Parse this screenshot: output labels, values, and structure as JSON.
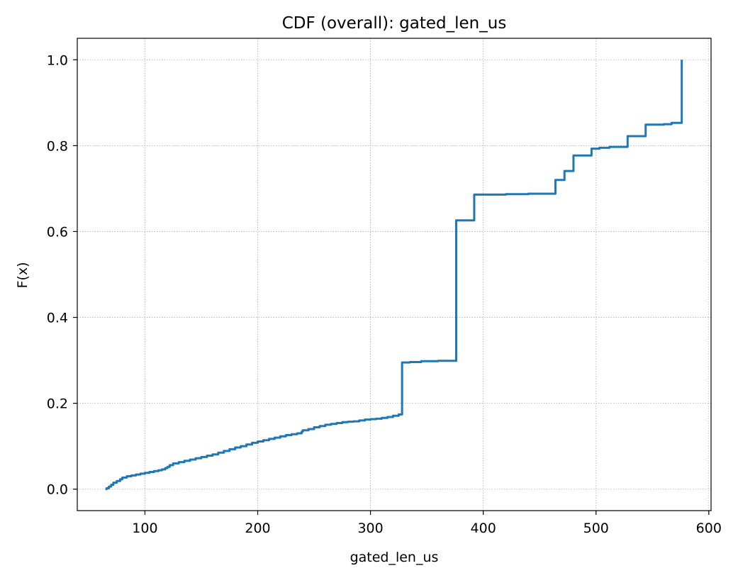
{
  "chart_data": {
    "type": "line",
    "title": "CDF (overall): gated_len_us",
    "xlabel": "gated_len_us",
    "ylabel": "F(x)",
    "xlim": [
      40,
      602
    ],
    "ylim": [
      -0.05,
      1.05
    ],
    "xticks": [
      100,
      200,
      300,
      400,
      500,
      600
    ],
    "yticks": [
      0.0,
      0.2,
      0.4,
      0.6,
      0.8,
      1.0
    ],
    "xtick_labels": [
      "100",
      "200",
      "300",
      "400",
      "500",
      "600"
    ],
    "ytick_labels": [
      "0.0",
      "0.2",
      "0.4",
      "0.6",
      "0.8",
      "1.0"
    ],
    "grid": true,
    "step": "post",
    "color": "#1f77b4",
    "series": [
      {
        "x": [
          65,
          66,
          68,
          70,
          72,
          75,
          78,
          80,
          84,
          88,
          92,
          96,
          100,
          104,
          108,
          112,
          115,
          118,
          120,
          122,
          125,
          130,
          135,
          140,
          145,
          150,
          155,
          160,
          165,
          170,
          175,
          180,
          185,
          190,
          195,
          200,
          205,
          210,
          215,
          220,
          225,
          230,
          235,
          239,
          240,
          245,
          250,
          255,
          260,
          265,
          270,
          275,
          280,
          285,
          290,
          295,
          300,
          305,
          310,
          315,
          320,
          325,
          328,
          335,
          345,
          360,
          376,
          392,
          420,
          440,
          464,
          472,
          480,
          496,
          503,
          512,
          528,
          544,
          560,
          567,
          576,
          576
        ],
        "y": [
          0.0,
          0.002,
          0.006,
          0.01,
          0.015,
          0.019,
          0.023,
          0.027,
          0.03,
          0.032,
          0.034,
          0.036,
          0.038,
          0.04,
          0.042,
          0.044,
          0.046,
          0.049,
          0.052,
          0.056,
          0.06,
          0.063,
          0.066,
          0.069,
          0.072,
          0.075,
          0.078,
          0.081,
          0.085,
          0.089,
          0.093,
          0.097,
          0.1,
          0.104,
          0.108,
          0.111,
          0.114,
          0.117,
          0.12,
          0.123,
          0.126,
          0.128,
          0.13,
          0.134,
          0.137,
          0.14,
          0.144,
          0.147,
          0.15,
          0.152,
          0.154,
          0.156,
          0.157,
          0.158,
          0.16,
          0.162,
          0.163,
          0.164,
          0.166,
          0.168,
          0.171,
          0.174,
          0.295,
          0.296,
          0.298,
          0.299,
          0.626,
          0.686,
          0.687,
          0.688,
          0.72,
          0.741,
          0.777,
          0.793,
          0.795,
          0.797,
          0.822,
          0.849,
          0.85,
          0.853,
          0.853,
          1.0
        ]
      }
    ]
  }
}
